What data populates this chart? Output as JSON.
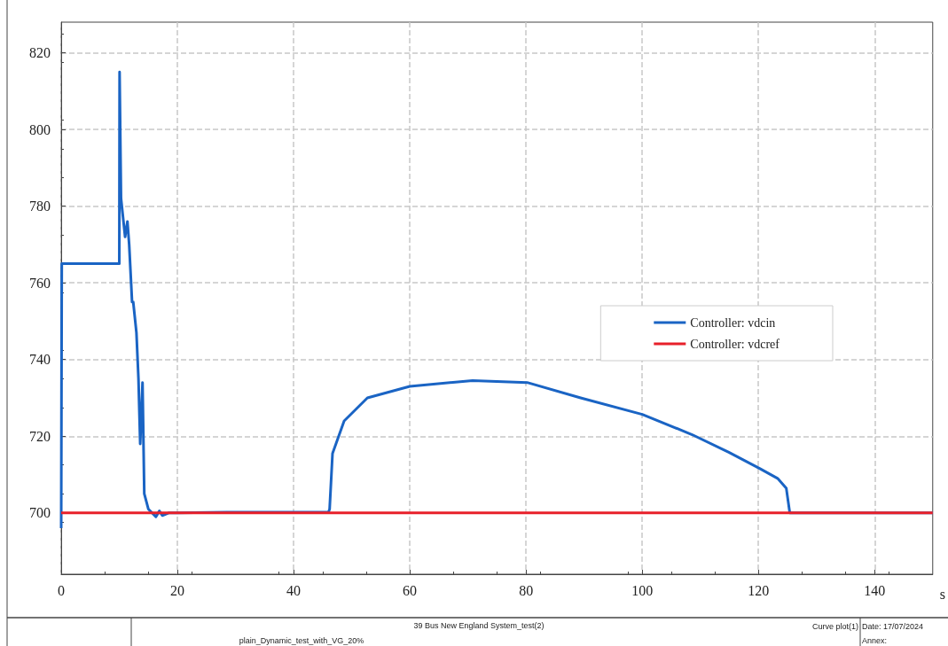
{
  "chart_data": {
    "type": "line",
    "xlabel": "s",
    "series": [
      {
        "name": "Controller: vdcin",
        "color": "#1a64c4",
        "x": [
          0,
          0.1,
          2,
          5,
          10,
          10.05,
          10.3,
          11.0,
          11.4,
          11.7,
          12.2,
          12.4,
          12.95,
          13.3,
          13.6,
          14.0,
          14.3,
          15.0,
          16.3,
          16.9,
          17.4,
          18.5,
          20,
          30,
          46,
          46.2,
          46.7,
          48.7,
          52.7,
          60,
          70.8,
          80.2,
          89.4,
          100,
          108.6,
          114.9,
          120.2,
          123.3,
          124.8,
          125.4,
          150
        ],
        "values": [
          696,
          765,
          765,
          765,
          765,
          815,
          782,
          772,
          776,
          770,
          755,
          755,
          747,
          735,
          718,
          734,
          705,
          701,
          699,
          700.5,
          699.3,
          700,
          700,
          700.2,
          700.2,
          701,
          715.5,
          724,
          730,
          733,
          734.5,
          734,
          730,
          725.7,
          720.4,
          715.8,
          711.6,
          709,
          706.4,
          700,
          700
        ]
      },
      {
        "name": "Controller: vdcref",
        "color": "#e8202a",
        "x": [
          0,
          150
        ],
        "values": [
          700,
          700
        ]
      }
    ],
    "xlim": [
      0,
      150
    ],
    "xticks": [
      0,
      20,
      40,
      60,
      80,
      100,
      120,
      140
    ],
    "ylim": [
      684,
      828
    ],
    "yticks": [
      700,
      720,
      740,
      760,
      780,
      800,
      820
    ],
    "grid": true,
    "legend": "right",
    "marker": "none",
    "line_style": "solid",
    "annotations": [
      "39 Bus New England System_test(2)",
      "plain_Dynamic_test_with_VG_20%",
      "Curve plot(1)",
      "Date: 17/07/2024",
      "Annex:"
    ]
  }
}
